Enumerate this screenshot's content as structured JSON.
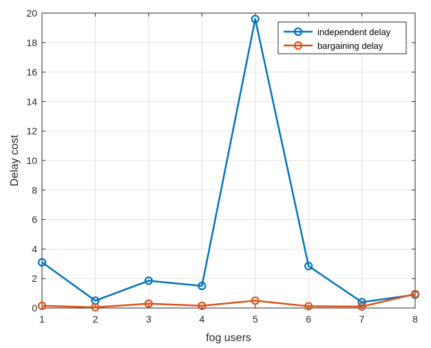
{
  "chart_data": {
    "type": "line",
    "title": "",
    "xlabel": "fog users",
    "ylabel": "Delay cost",
    "x": [
      1,
      2,
      3,
      4,
      5,
      6,
      7,
      8
    ],
    "xlim": [
      1,
      8
    ],
    "ylim": [
      0,
      20
    ],
    "xticks": [
      1,
      2,
      3,
      4,
      5,
      6,
      7,
      8
    ],
    "yticks": [
      0,
      2,
      4,
      6,
      8,
      10,
      12,
      14,
      16,
      18,
      20
    ],
    "grid": true,
    "legend_position": "top-right",
    "series": [
      {
        "name": "independent delay",
        "color": "#0072BD",
        "marker": "circle",
        "values": [
          3.1,
          0.5,
          1.85,
          1.5,
          19.6,
          2.85,
          0.4,
          0.9
        ]
      },
      {
        "name": "bargaining delay",
        "color": "#D95319",
        "marker": "circle",
        "values": [
          0.15,
          0.05,
          0.3,
          0.15,
          0.5,
          0.12,
          0.1,
          0.95
        ]
      }
    ]
  }
}
